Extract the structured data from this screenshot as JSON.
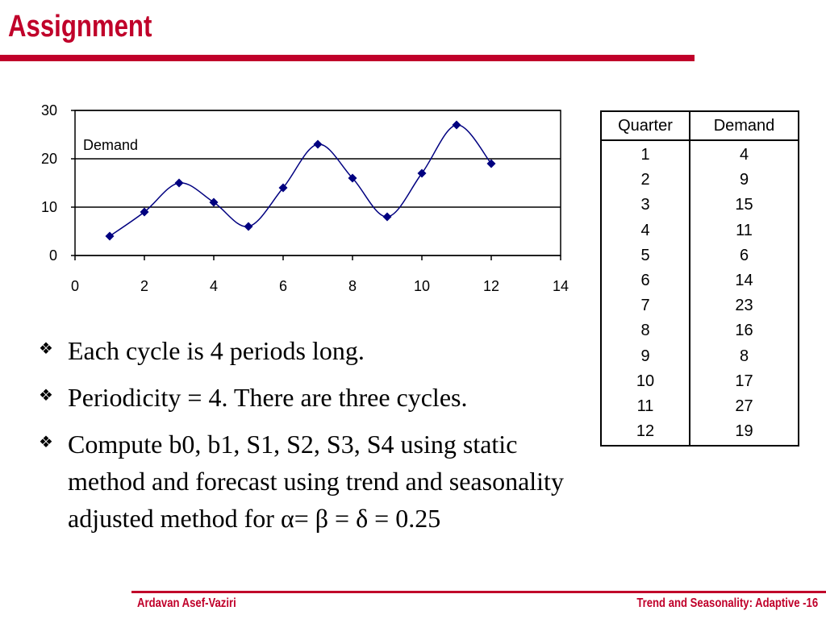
{
  "title": "Assignment",
  "colors": {
    "accent": "#c0002a",
    "series": "#000080"
  },
  "chart_data": {
    "type": "line",
    "series": [
      {
        "name": "Demand",
        "x": [
          1,
          2,
          3,
          4,
          5,
          6,
          7,
          8,
          9,
          10,
          11,
          12
        ],
        "values": [
          4,
          9,
          15,
          11,
          6,
          14,
          23,
          16,
          8,
          17,
          27,
          19
        ]
      }
    ],
    "xlim": [
      0,
      14
    ],
    "ylim": [
      0,
      30
    ],
    "x_ticks": [
      0,
      2,
      4,
      6,
      8,
      10,
      12,
      14
    ],
    "y_ticks": [
      0,
      10,
      20,
      30
    ],
    "grid": "horizontal",
    "legend_placement": "top-left",
    "smooth": true,
    "marker": "diamond"
  },
  "table": {
    "headers": [
      "Quarter",
      "Demand"
    ],
    "rows": [
      [
        "1",
        "4"
      ],
      [
        "2",
        "9"
      ],
      [
        "3",
        "15"
      ],
      [
        "4",
        "11"
      ],
      [
        "5",
        "6"
      ],
      [
        "6",
        "14"
      ],
      [
        "7",
        "23"
      ],
      [
        "8",
        "16"
      ],
      [
        "9",
        "8"
      ],
      [
        "10",
        "17"
      ],
      [
        "11",
        "27"
      ],
      [
        "12",
        "19"
      ]
    ]
  },
  "bullets": [
    "Each cycle is 4 periods long.",
    "Periodicity = 4. There are three cycles.",
    "Compute b0, b1, S1, S2, S3, S4 using static method and forecast using trend and seasonality adjusted method for α= β = δ = 0.25"
  ],
  "bullet_icon": "diamond-bullet-icon",
  "footer": {
    "left": "Ardavan Asef-Vaziri",
    "right": "Trend and Seasonality: Adaptive -16"
  }
}
